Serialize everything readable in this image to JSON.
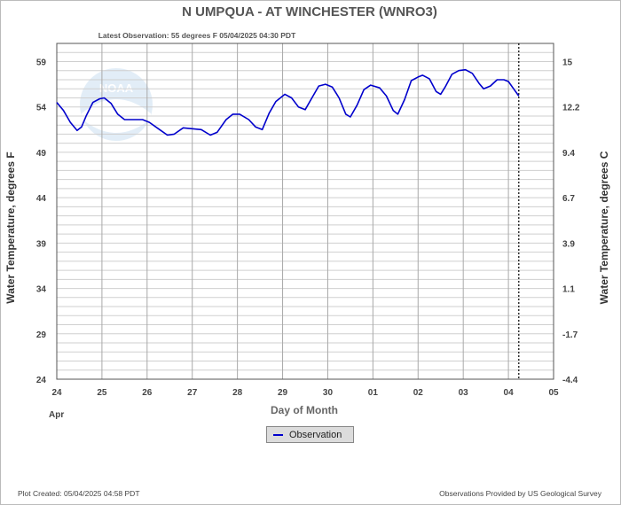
{
  "colors": {
    "series": "#0000cc",
    "grid": "#cfcfcf",
    "grid_major": "#a9a9a9",
    "text": "#555555"
  },
  "footer": {
    "created": "Plot Created: 05/04/2025 04:58 PDT",
    "provider": "Observations Provided by US Geological Survey"
  },
  "legend": {
    "label": "Observation"
  },
  "chart_data": {
    "type": "line",
    "title": "N UMPQUA - AT WINCHESTER  (WNRO3)",
    "subtitle": "Latest Observation: 55 degrees F 05/04/2025 04:30 PDT",
    "xlabel": "Day of Month",
    "x_month_label": "Apr",
    "ylabel_left": "Water Temperature, degrees F",
    "ylabel_right": "Water Temperature, degrees C",
    "x_range_days": [
      0,
      11
    ],
    "x_tick_labels": [
      "24",
      "25",
      "26",
      "27",
      "28",
      "29",
      "30",
      "01",
      "02",
      "03",
      "04",
      "05"
    ],
    "y_range_f": [
      24,
      61
    ],
    "y_ticks_f": [
      24,
      29,
      34,
      39,
      44,
      49,
      54,
      59
    ],
    "y_ticks_c": [
      "-4.4",
      "-1.7",
      "1.1",
      "3.9",
      "6.7",
      "9.4",
      "12.2",
      "15"
    ],
    "latest_observation_day": 10.23,
    "grid": true,
    "legend_position": "bottom-center",
    "series": [
      {
        "name": "Observation",
        "points": [
          [
            0.0,
            54.5
          ],
          [
            0.15,
            53.6
          ],
          [
            0.3,
            52.3
          ],
          [
            0.45,
            51.4
          ],
          [
            0.55,
            51.8
          ],
          [
            0.65,
            53.0
          ],
          [
            0.8,
            54.5
          ],
          [
            0.95,
            54.9
          ],
          [
            1.05,
            55.0
          ],
          [
            1.2,
            54.4
          ],
          [
            1.35,
            53.2
          ],
          [
            1.5,
            52.6
          ],
          [
            1.7,
            52.6
          ],
          [
            1.9,
            52.6
          ],
          [
            2.05,
            52.3
          ],
          [
            2.25,
            51.6
          ],
          [
            2.45,
            50.9
          ],
          [
            2.6,
            51.0
          ],
          [
            2.8,
            51.7
          ],
          [
            3.0,
            51.6
          ],
          [
            3.2,
            51.5
          ],
          [
            3.4,
            50.9
          ],
          [
            3.55,
            51.2
          ],
          [
            3.75,
            52.6
          ],
          [
            3.9,
            53.2
          ],
          [
            4.05,
            53.2
          ],
          [
            4.25,
            52.6
          ],
          [
            4.4,
            51.8
          ],
          [
            4.55,
            51.5
          ],
          [
            4.7,
            53.3
          ],
          [
            4.85,
            54.6
          ],
          [
            5.05,
            55.4
          ],
          [
            5.2,
            55.0
          ],
          [
            5.35,
            54.0
          ],
          [
            5.5,
            53.7
          ],
          [
            5.65,
            55.0
          ],
          [
            5.8,
            56.3
          ],
          [
            5.95,
            56.5
          ],
          [
            6.1,
            56.2
          ],
          [
            6.25,
            55.0
          ],
          [
            6.4,
            53.2
          ],
          [
            6.5,
            52.9
          ],
          [
            6.65,
            54.2
          ],
          [
            6.8,
            55.9
          ],
          [
            6.95,
            56.4
          ],
          [
            7.15,
            56.1
          ],
          [
            7.3,
            55.2
          ],
          [
            7.45,
            53.6
          ],
          [
            7.55,
            53.2
          ],
          [
            7.7,
            54.8
          ],
          [
            7.85,
            56.9
          ],
          [
            8.0,
            57.3
          ],
          [
            8.1,
            57.5
          ],
          [
            8.25,
            57.1
          ],
          [
            8.4,
            55.7
          ],
          [
            8.5,
            55.4
          ],
          [
            8.6,
            56.2
          ],
          [
            8.75,
            57.6
          ],
          [
            8.9,
            58.0
          ],
          [
            9.05,
            58.1
          ],
          [
            9.2,
            57.7
          ],
          [
            9.35,
            56.6
          ],
          [
            9.45,
            56.0
          ],
          [
            9.6,
            56.3
          ],
          [
            9.75,
            57.0
          ],
          [
            9.9,
            57.0
          ],
          [
            10.0,
            56.8
          ],
          [
            10.1,
            56.1
          ],
          [
            10.23,
            55.2
          ]
        ]
      }
    ]
  }
}
